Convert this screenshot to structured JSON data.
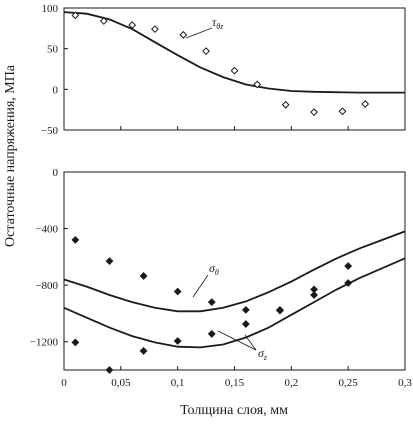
{
  "chart_data": [
    {
      "type": "scatter",
      "panel": "top",
      "xlim": [
        0,
        0.3
      ],
      "ylim": [
        -50,
        100
      ],
      "yticks": [
        -50,
        0,
        50,
        100
      ],
      "grid": false,
      "annotation": {
        "symbol": "τ",
        "subscript": "θz"
      },
      "series": [
        {
          "kind": "curve",
          "points": [
            [
              0.0,
              95
            ],
            [
              0.02,
              93
            ],
            [
              0.04,
              86
            ],
            [
              0.06,
              74
            ],
            [
              0.08,
              58
            ],
            [
              0.1,
              42
            ],
            [
              0.12,
              27
            ],
            [
              0.14,
              15
            ],
            [
              0.16,
              6
            ],
            [
              0.18,
              1
            ],
            [
              0.2,
              -2
            ],
            [
              0.22,
              -3
            ],
            [
              0.26,
              -4
            ],
            [
              0.3,
              -4
            ]
          ]
        },
        {
          "kind": "points",
          "marker": "diamond-open",
          "points": [
            [
              0.01,
              91
            ],
            [
              0.035,
              84
            ],
            [
              0.06,
              79
            ],
            [
              0.08,
              74
            ],
            [
              0.105,
              67
            ],
            [
              0.125,
              47
            ],
            [
              0.15,
              23
            ],
            [
              0.17,
              6
            ],
            [
              0.195,
              -19
            ],
            [
              0.22,
              -28
            ],
            [
              0.245,
              -27
            ],
            [
              0.265,
              -18
            ]
          ]
        }
      ]
    },
    {
      "type": "scatter",
      "panel": "bottom",
      "xlim": [
        0,
        0.3
      ],
      "ylim": [
        -1400,
        0
      ],
      "yticks": [
        -1200,
        -800,
        -400,
        0
      ],
      "xticks": [
        "0",
        "0,05",
        "0,1",
        "0,15",
        "0,2",
        "0,25",
        "0,3"
      ],
      "xtick_values": [
        0,
        0.05,
        0.1,
        0.15,
        0.2,
        0.25,
        0.3
      ],
      "grid": false,
      "annotations": [
        {
          "symbol": "σ",
          "subscript": "θ"
        },
        {
          "symbol": "σ",
          "subscript": "z"
        }
      ],
      "series": [
        {
          "kind": "curve",
          "points": [
            [
              0.0,
              -760
            ],
            [
              0.02,
              -810
            ],
            [
              0.04,
              -870
            ],
            [
              0.06,
              -920
            ],
            [
              0.08,
              -960
            ],
            [
              0.1,
              -985
            ],
            [
              0.12,
              -985
            ],
            [
              0.14,
              -960
            ],
            [
              0.16,
              -915
            ],
            [
              0.18,
              -850
            ],
            [
              0.2,
              -775
            ],
            [
              0.22,
              -690
            ],
            [
              0.24,
              -610
            ],
            [
              0.26,
              -540
            ],
            [
              0.28,
              -480
            ],
            [
              0.3,
              -420
            ]
          ]
        },
        {
          "kind": "curve",
          "points": [
            [
              0.0,
              -960
            ],
            [
              0.02,
              -1030
            ],
            [
              0.04,
              -1100
            ],
            [
              0.06,
              -1160
            ],
            [
              0.08,
              -1205
            ],
            [
              0.1,
              -1235
            ],
            [
              0.12,
              -1240
            ],
            [
              0.14,
              -1220
            ],
            [
              0.16,
              -1170
            ],
            [
              0.18,
              -1100
            ],
            [
              0.2,
              -1010
            ],
            [
              0.22,
              -920
            ],
            [
              0.24,
              -830
            ],
            [
              0.26,
              -750
            ],
            [
              0.28,
              -680
            ],
            [
              0.3,
              -610
            ]
          ]
        },
        {
          "kind": "points",
          "marker": "diamond-filled",
          "points": [
            [
              0.01,
              -480
            ],
            [
              0.04,
              -630
            ],
            [
              0.07,
              -735
            ],
            [
              0.1,
              -845
            ],
            [
              0.13,
              -920
            ],
            [
              0.16,
              -975
            ],
            [
              0.19,
              -980
            ],
            [
              0.22,
              -830
            ],
            [
              0.25,
              -665
            ],
            [
              0.01,
              -1205
            ],
            [
              0.04,
              -1400
            ],
            [
              0.07,
              -1265
            ],
            [
              0.1,
              -1195
            ],
            [
              0.13,
              -1145
            ],
            [
              0.16,
              -1075
            ],
            [
              0.19,
              -975
            ],
            [
              0.22,
              -870
            ],
            [
              0.25,
              -785
            ]
          ]
        }
      ]
    }
  ],
  "axes": {
    "xlabel": "Толщина слоя, мм",
    "ylabel": "Остаточные напряжения, МПа"
  }
}
